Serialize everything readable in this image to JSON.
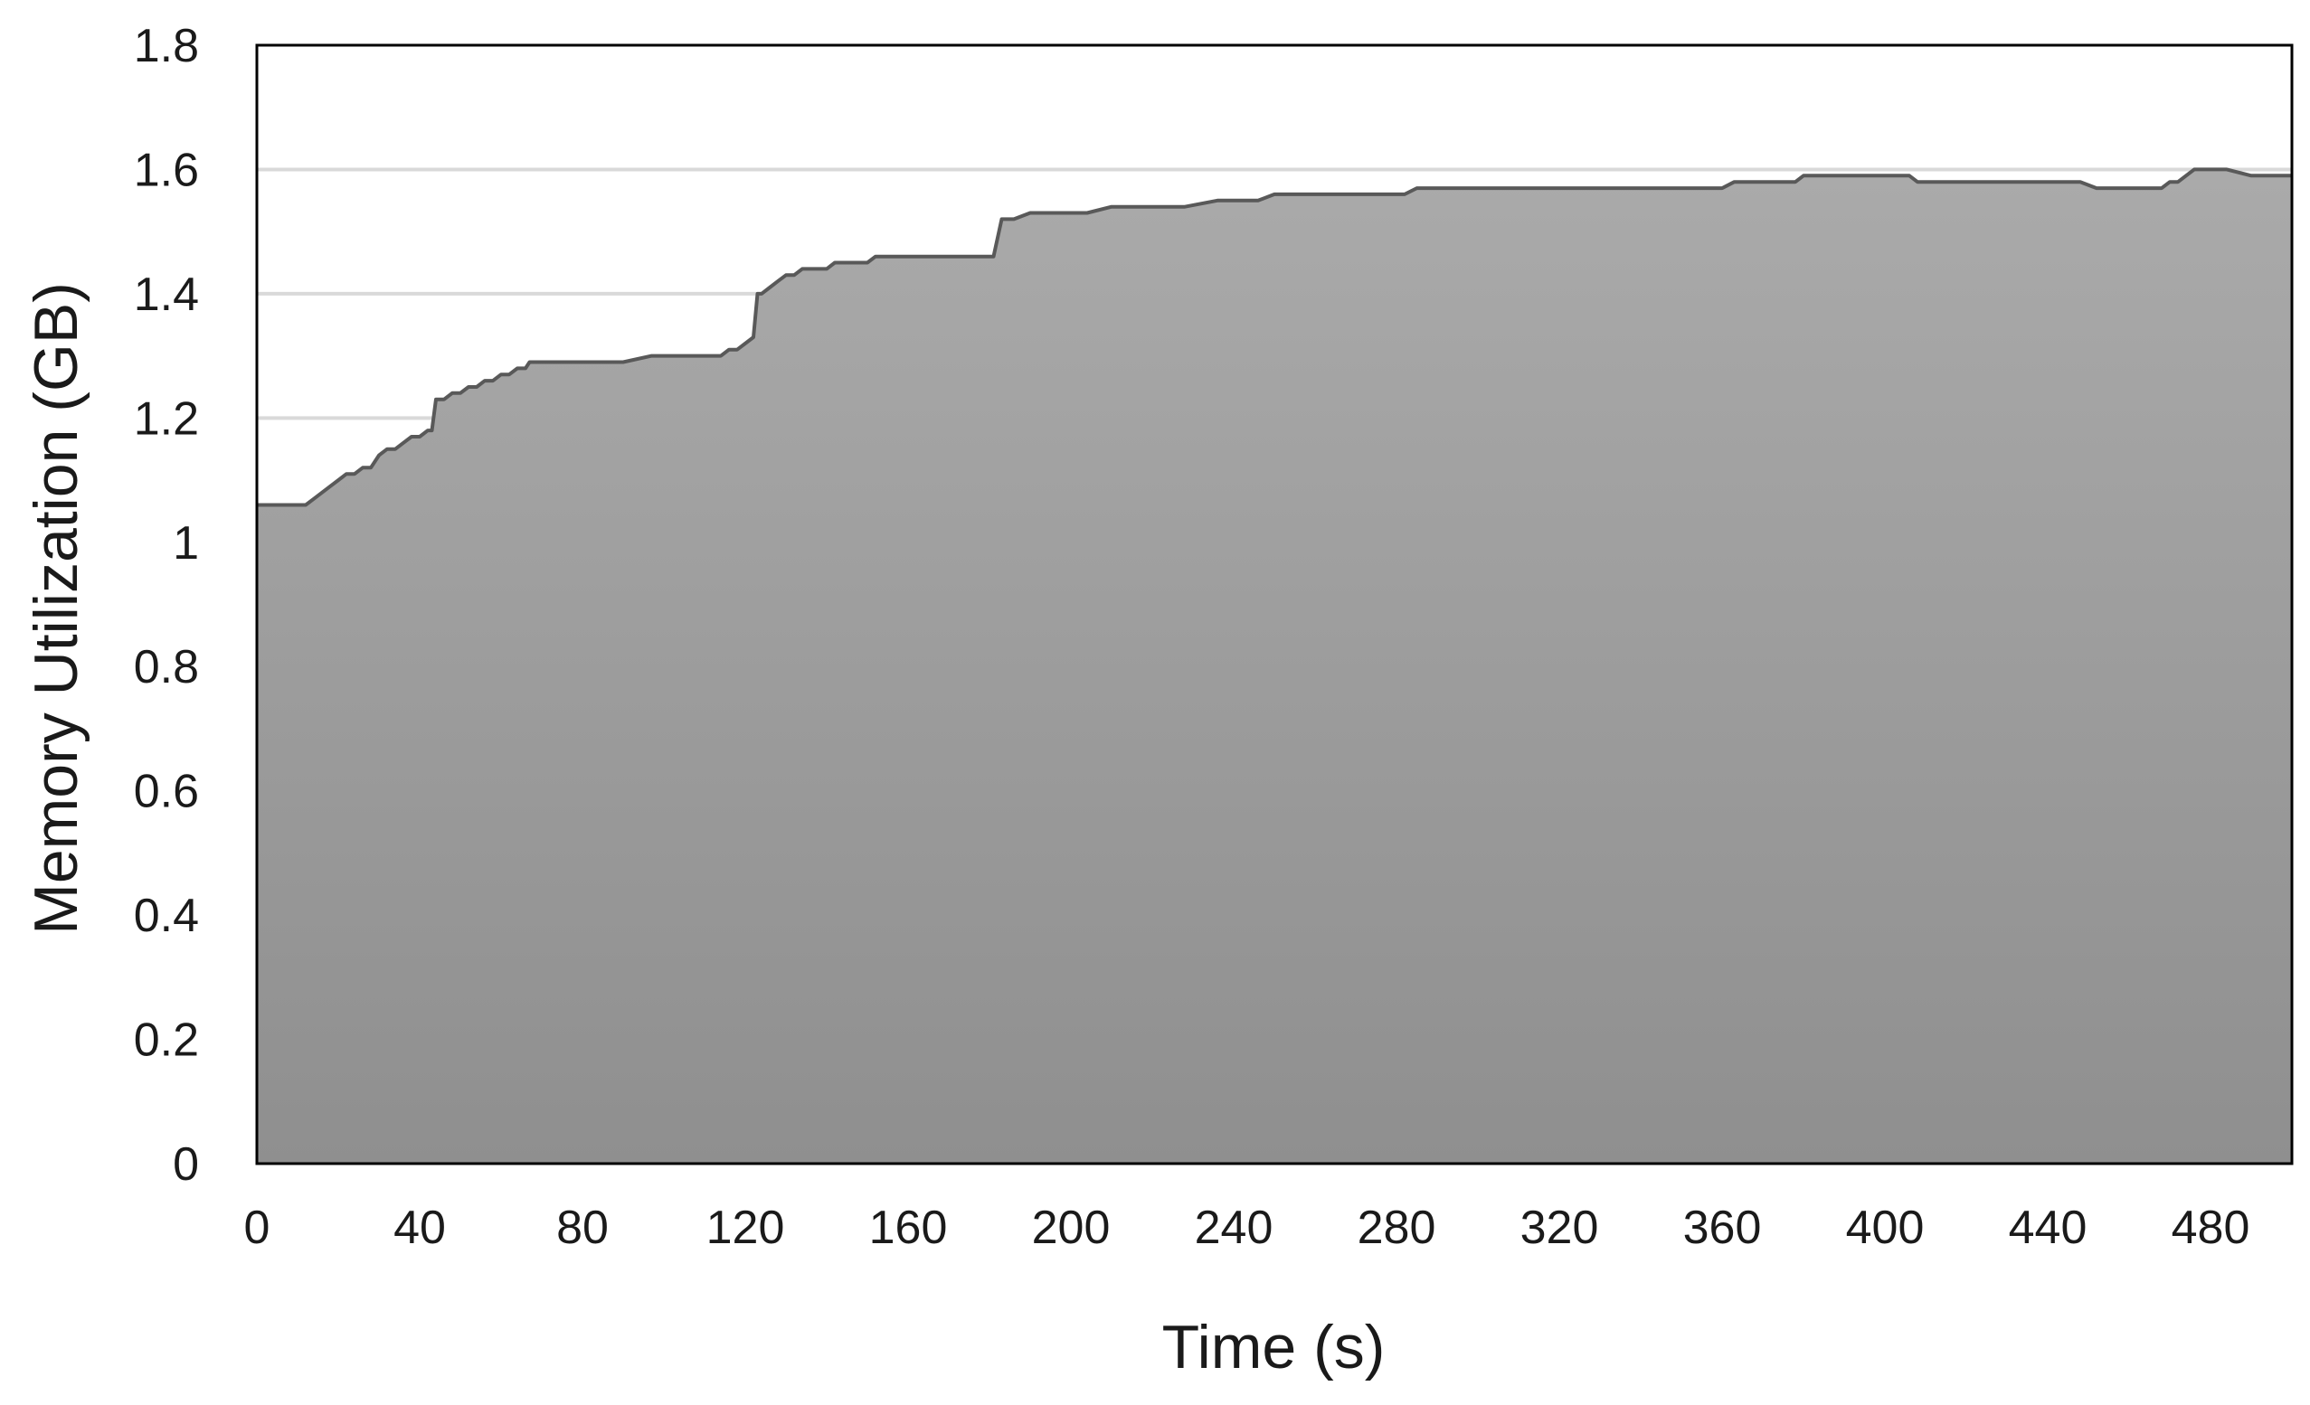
{
  "chart_data": {
    "type": "area",
    "title": "",
    "xlabel": "Time (s)",
    "ylabel": "Memory Utilization (GB)",
    "xlim": [
      0,
      500
    ],
    "ylim": [
      0,
      1.8
    ],
    "x_ticks": [
      0,
      40,
      80,
      120,
      160,
      200,
      240,
      280,
      320,
      360,
      400,
      440,
      480
    ],
    "x_tick_labels": [
      "0",
      "40",
      "80",
      "120",
      "160",
      "200",
      "240",
      "280",
      "320",
      "360",
      "400",
      "440",
      "480"
    ],
    "y_ticks": [
      0,
      0.2,
      0.4,
      0.6,
      0.8,
      1.0,
      1.2,
      1.4,
      1.6,
      1.8
    ],
    "y_tick_labels": [
      "0",
      "0.2",
      "0.4",
      "0.6",
      "0.8",
      "1",
      "1.2",
      "1.4",
      "1.6",
      "1.8"
    ],
    "grid": "horizontal",
    "legend": "none",
    "colors": {
      "fill_top": "#aaaaaa",
      "fill_bottom": "#8f8f8f",
      "line": "#595959",
      "grid": "#d9d9d9",
      "frame": "#000000"
    },
    "series": [
      {
        "x": [
          0,
          12,
          14,
          16,
          18,
          20,
          22,
          24,
          26,
          28,
          30,
          32,
          34,
          36,
          38,
          40,
          42,
          43,
          44,
          46,
          48,
          50,
          52,
          54,
          56,
          58,
          60,
          62,
          64,
          66,
          67,
          70,
          80,
          90,
          97,
          100,
          110,
          114,
          116,
          118,
          120,
          122,
          123,
          124,
          126,
          128,
          130,
          132,
          134,
          136,
          138,
          140,
          142,
          144,
          146,
          148,
          150,
          152,
          154,
          156,
          158,
          160,
          162,
          164,
          166,
          168,
          170,
          172,
          174,
          176,
          178,
          181,
          183,
          186,
          190,
          196,
          204,
          210,
          218,
          228,
          236,
          246,
          250,
          254,
          262,
          268,
          276,
          282,
          285,
          290,
          300,
          310,
          320,
          340,
          360,
          363,
          372,
          374,
          378,
          380,
          390,
          400,
          406,
          408,
          420,
          430,
          432,
          434,
          436,
          440,
          448,
          452,
          456,
          460,
          466,
          468,
          470,
          472,
          474,
          476,
          480,
          484,
          490,
          500
        ],
        "y": [
          1.06,
          1.06,
          1.07,
          1.08,
          1.09,
          1.1,
          1.11,
          1.11,
          1.12,
          1.12,
          1.14,
          1.15,
          1.15,
          1.16,
          1.17,
          1.17,
          1.18,
          1.18,
          1.23,
          1.23,
          1.24,
          1.24,
          1.25,
          1.25,
          1.26,
          1.26,
          1.27,
          1.27,
          1.28,
          1.28,
          1.29,
          1.29,
          1.29,
          1.29,
          1.3,
          1.3,
          1.3,
          1.3,
          1.31,
          1.31,
          1.32,
          1.33,
          1.4,
          1.4,
          1.41,
          1.42,
          1.43,
          1.43,
          1.44,
          1.44,
          1.44,
          1.44,
          1.45,
          1.45,
          1.45,
          1.45,
          1.45,
          1.46,
          1.46,
          1.46,
          1.46,
          1.46,
          1.46,
          1.46,
          1.46,
          1.46,
          1.46,
          1.46,
          1.46,
          1.46,
          1.46,
          1.46,
          1.52,
          1.52,
          1.53,
          1.53,
          1.53,
          1.54,
          1.54,
          1.54,
          1.55,
          1.55,
          1.56,
          1.56,
          1.56,
          1.56,
          1.56,
          1.56,
          1.57,
          1.57,
          1.57,
          1.57,
          1.57,
          1.57,
          1.57,
          1.58,
          1.58,
          1.58,
          1.58,
          1.59,
          1.59,
          1.59,
          1.59,
          1.58,
          1.58,
          1.58,
          1.58,
          1.58,
          1.58,
          1.58,
          1.58,
          1.57,
          1.57,
          1.57,
          1.57,
          1.57,
          1.58,
          1.58,
          1.59,
          1.6,
          1.6,
          1.6,
          1.59,
          1.59
        ]
      }
    ]
  }
}
